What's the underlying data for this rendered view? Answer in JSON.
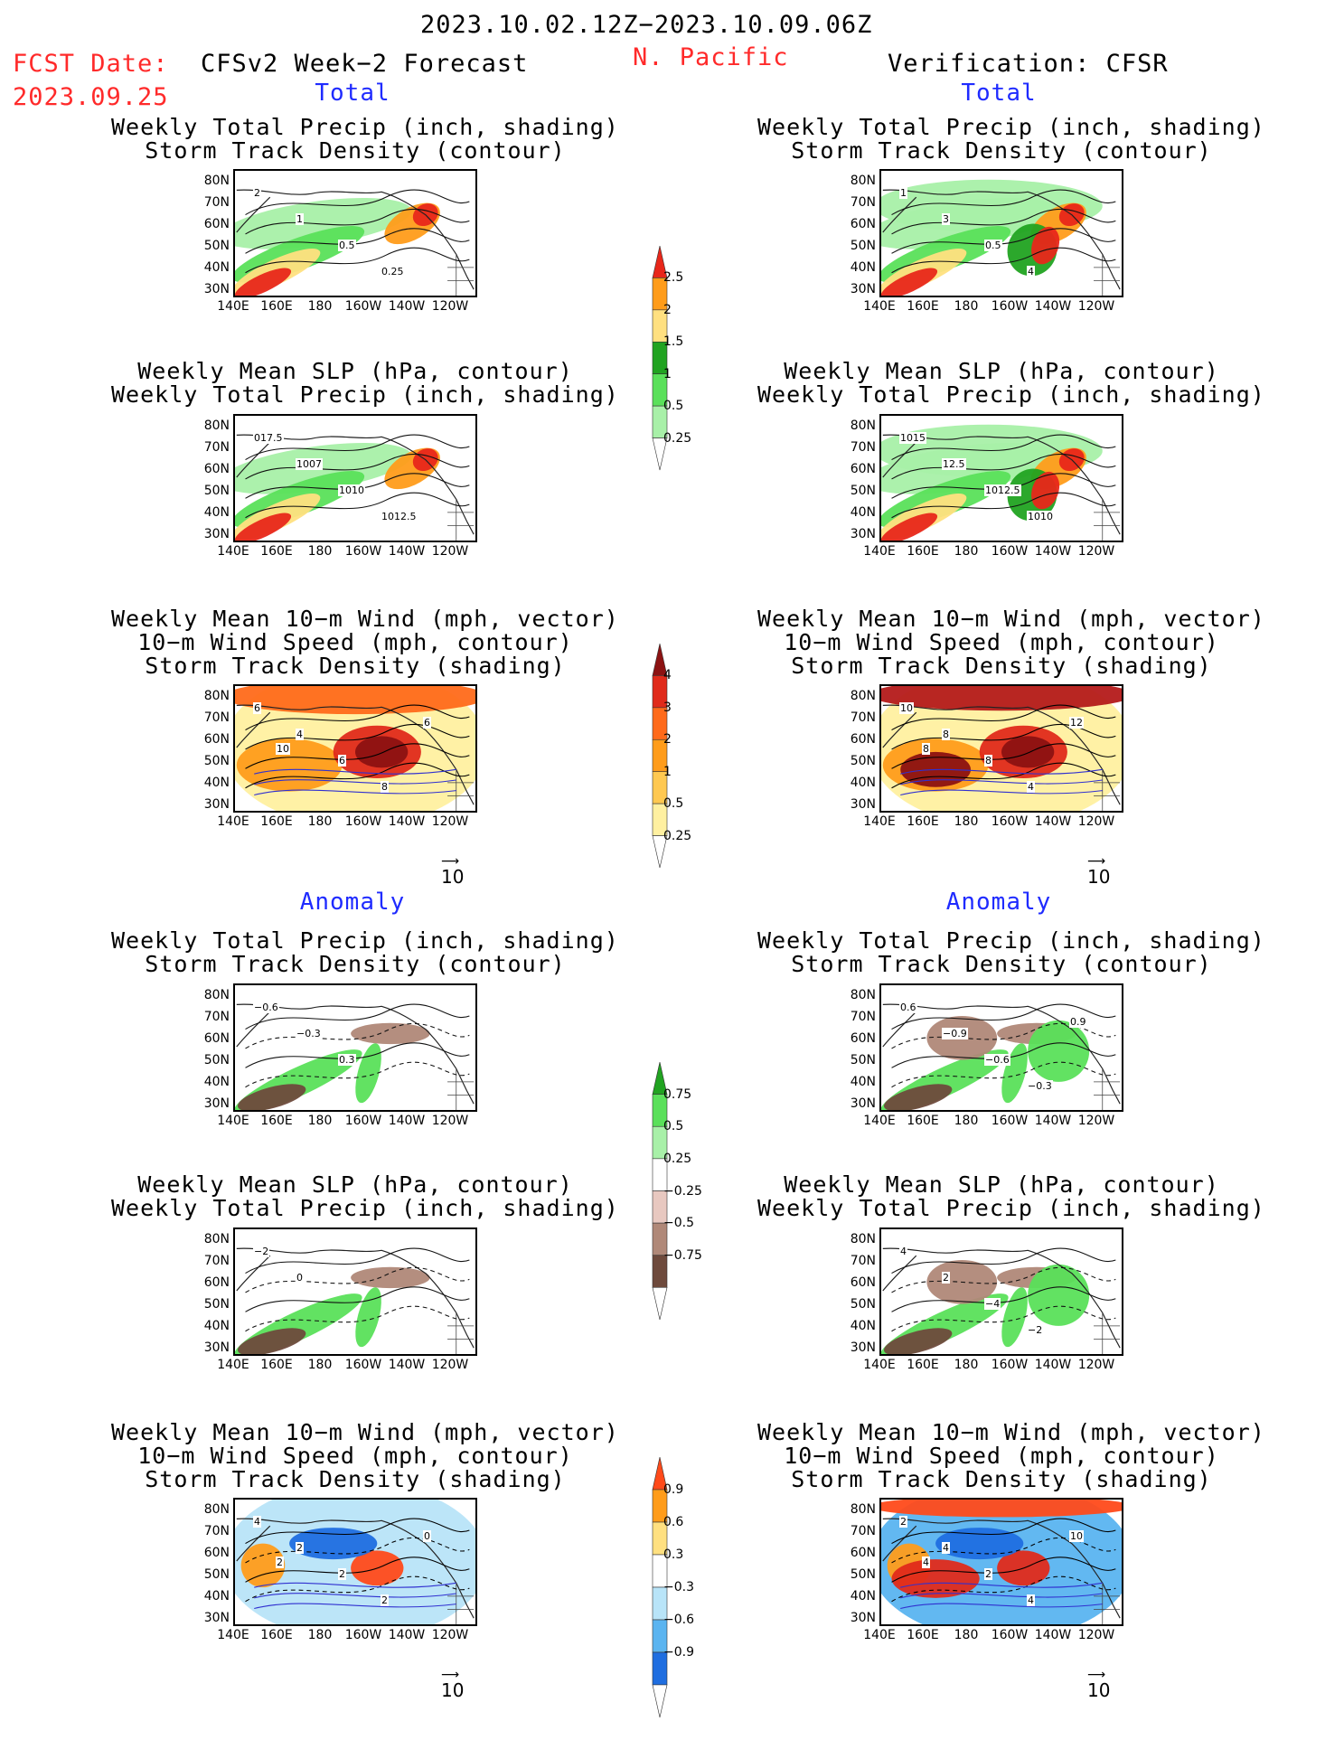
{
  "header": {
    "date_range": "2023.10.02.12Z−2023.10.09.06Z",
    "fcst_label": "FCST Date:",
    "fcst_date": "2023.09.25",
    "model": "CFSv2 Week−2 Forecast",
    "region": "N. Pacific",
    "verification": "Verification: CFSR"
  },
  "sections": {
    "total": "Total",
    "anomaly": "Anomaly"
  },
  "titles": {
    "precip_storm": "Weekly Total Precip (inch, shading)\nStorm Track Density (contour)",
    "slp_precip": "Weekly Mean SLP (hPa, contour)\nWeekly Total Precip (inch, shading)",
    "wind_storm": "Weekly Mean 10−m Wind (mph, vector)\n10−m Wind Speed (mph, contour)\nStorm Track Density (shading)"
  },
  "axes": {
    "lat_ticks": [
      "80N",
      "70N",
      "60N",
      "50N",
      "40N",
      "30N"
    ],
    "lon_ticks": [
      "140E",
      "160E",
      "180",
      "160W",
      "140W",
      "120W"
    ]
  },
  "vector_ref": "10",
  "colorbars": {
    "precip_total": {
      "labels": [
        "2.5",
        "2",
        "1.5",
        "1",
        "0.5",
        "0.25"
      ],
      "colors": [
        "#e8271a",
        "#ff9c1a",
        "#ffe080",
        "#21a321",
        "#5ae05a",
        "#a8f0a8"
      ]
    },
    "storm_total": {
      "labels": [
        "4",
        "3",
        "2",
        "1",
        "0.5",
        "0.25"
      ],
      "colors": [
        "#8c1212",
        "#e02a1a",
        "#ff6a1a",
        "#ff9c1a",
        "#ffc850",
        "#fff0a0"
      ]
    },
    "precip_anom": {
      "labels": [
        "0.75",
        "0.5",
        "0.25",
        "−0.25",
        "−0.5",
        "−0.75"
      ],
      "colors": [
        "#21a321",
        "#5ae05a",
        "#a8f0a8",
        "#ffffff",
        "#e8c8c0",
        "#b08878",
        "#6e4a3c"
      ]
    },
    "storm_anom": {
      "labels": [
        "0.9",
        "0.6",
        "0.3",
        "−0.3",
        "−0.6",
        "−0.9"
      ],
      "colors": [
        "#ff4a1a",
        "#ff9c1a",
        "#ffe080",
        "#ffffff",
        "#b8e4f8",
        "#5ab4f0",
        "#1f6ee0"
      ]
    }
  },
  "panel_labels": {
    "l1": [
      "2",
      "1",
      "0.5",
      "0.25"
    ],
    "r1": [
      "1",
      "3",
      "0.5",
      "4"
    ],
    "l2": [
      "017.5",
      "1007",
      "1010",
      "1012.5"
    ],
    "r2": [
      "1015",
      "12.5",
      "1012.5",
      "1010"
    ],
    "l3": [
      "6",
      "4",
      "6",
      "8",
      "6",
      "10"
    ],
    "r3": [
      "10",
      "8",
      "8",
      "4",
      "12",
      "8"
    ],
    "l4": [
      "−0.6",
      "−0.3",
      "0.3"
    ],
    "r4": [
      "0.6",
      "−0.9",
      "−0.6",
      "−0.3",
      "0.9"
    ],
    "l5": [
      "−2",
      "0"
    ],
    "r5": [
      "4",
      "2",
      "−4",
      "−2"
    ],
    "l6": [
      "4",
      "2",
      "2",
      "2",
      "0",
      "2"
    ],
    "r6": [
      "2",
      "4",
      "2",
      "4",
      "10",
      "4"
    ]
  },
  "colors": {
    "text_red": "#ff2a2a",
    "text_blue": "#1f2bff"
  }
}
